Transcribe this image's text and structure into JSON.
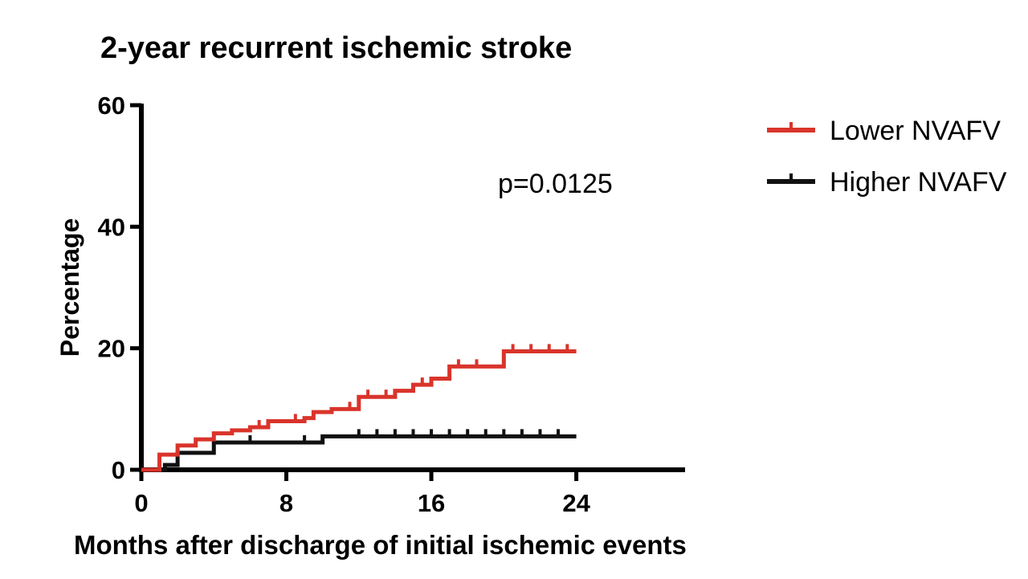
{
  "chart_data": {
    "type": "line",
    "title": "2-year recurrent ischemic stroke",
    "xlabel": "Months after discharge of  initial ischemic events",
    "ylabel": "Percentage",
    "xlim": [
      0,
      30
    ],
    "ylim": [
      0,
      60
    ],
    "xticks": [
      0,
      8,
      16,
      24
    ],
    "yticks": [
      0,
      20,
      40,
      60
    ],
    "grid": false,
    "legend_position": "top-right",
    "annotation": "p=0.0125",
    "series": [
      {
        "name": "Lower NVAFV",
        "color": "#d9342b",
        "steps": [
          [
            0,
            0
          ],
          [
            1,
            2.5
          ],
          [
            2,
            4
          ],
          [
            3,
            5
          ],
          [
            4,
            6
          ],
          [
            5,
            6.5
          ],
          [
            6,
            7
          ],
          [
            7,
            8
          ],
          [
            9,
            8.5
          ],
          [
            9.5,
            9.5
          ],
          [
            10.5,
            10
          ],
          [
            12,
            12
          ],
          [
            14,
            13
          ],
          [
            15,
            14
          ],
          [
            16,
            15
          ],
          [
            17,
            17
          ],
          [
            20,
            19.5
          ],
          [
            24,
            19.5
          ]
        ],
        "censor_marks": [
          6.5,
          8.5,
          11.5,
          12.5,
          13.5,
          15.5,
          17.5,
          18.5,
          20.5,
          21.5,
          22.5,
          23.5
        ]
      },
      {
        "name": "Higher NVAFV",
        "color": "#111111",
        "steps": [
          [
            0,
            0
          ],
          [
            1.3,
            0.8
          ],
          [
            2,
            2.8
          ],
          [
            4,
            4.5
          ],
          [
            10,
            5.5
          ],
          [
            24,
            5.5
          ]
        ],
        "censor_marks": [
          6,
          9,
          12,
          13,
          14,
          15,
          16,
          17,
          18,
          19,
          20,
          21,
          22,
          23
        ]
      }
    ]
  }
}
